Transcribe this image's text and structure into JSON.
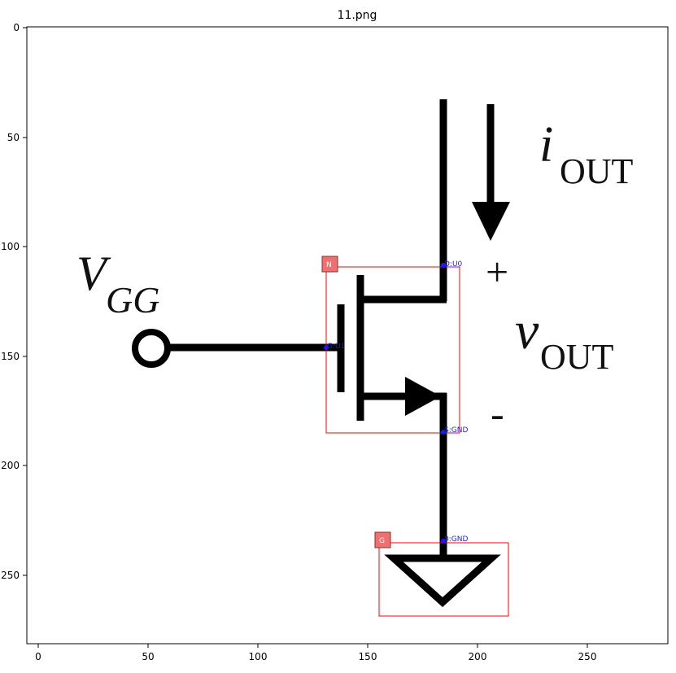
{
  "title": "11.png",
  "axes": {
    "x_ticks": [
      "0",
      "50",
      "100",
      "150",
      "200",
      "250"
    ],
    "y_ticks": [
      "0",
      "50",
      "100",
      "150",
      "200",
      "250"
    ]
  },
  "circuit": {
    "vgg_main": "V",
    "vgg_sub": "GG",
    "iout_main": "i",
    "iout_sub": "OUT",
    "vout_main": "v",
    "vout_sub": "OUT",
    "plus": "+",
    "minus": "-"
  },
  "annotations": {
    "nmos_badge": "N",
    "gnd_badge": "G",
    "drain_label": "D:U0",
    "gate_label": "G:U1",
    "source_label": "S:GND",
    "ground_label": "0:GND"
  },
  "colors": {
    "box": "#ff0000",
    "badge": "#f07070",
    "pin": "#1a1aff"
  }
}
